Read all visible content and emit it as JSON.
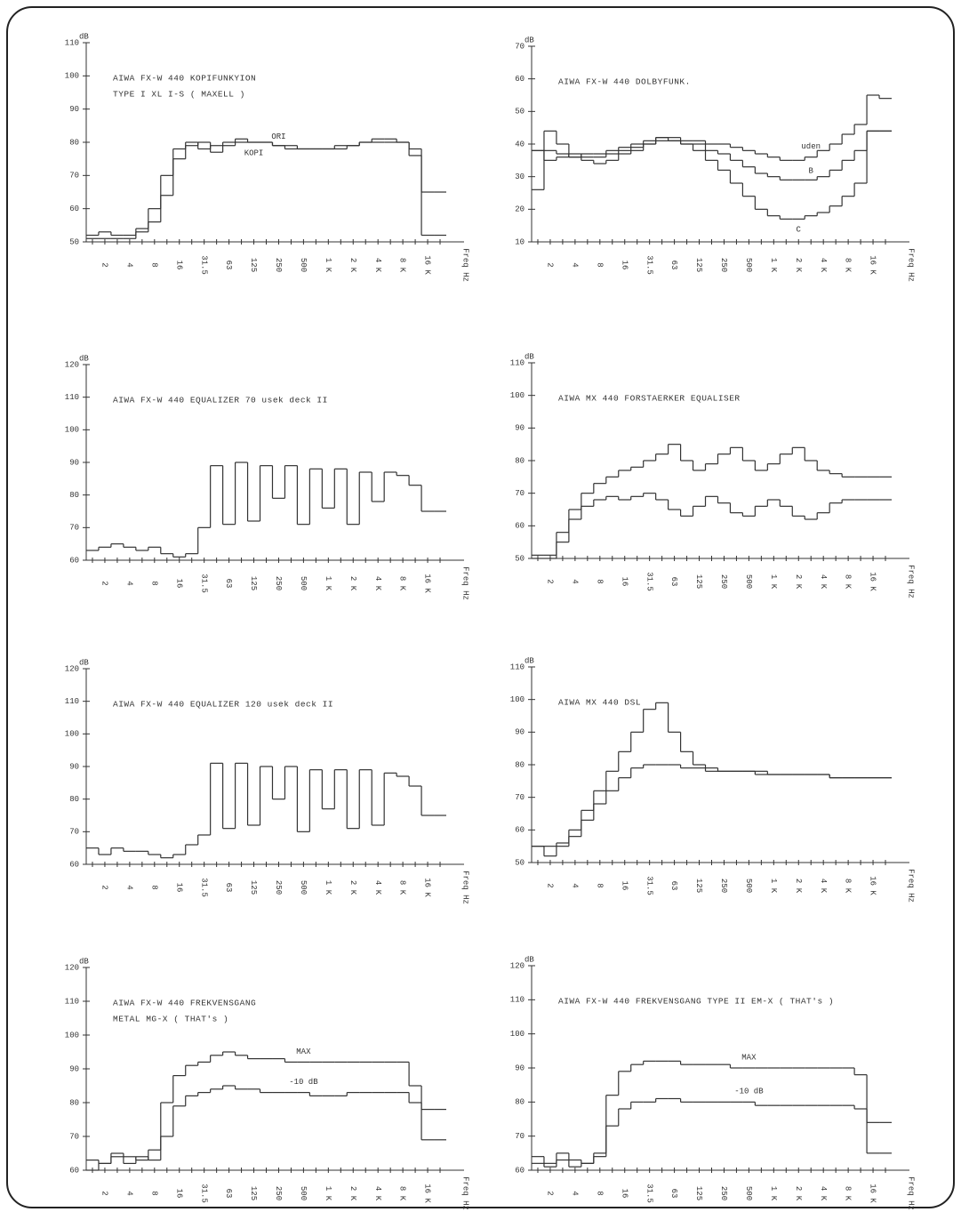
{
  "chart_data": [
    {
      "type": "step",
      "title": "AIWA FX-W 440 KOPIFUNKYION",
      "subtitle": "TYPE I XL I-S ( MAXELL )",
      "x_label": "Freq Hz",
      "y_unit": "dB",
      "color": "#333333",
      "categories": [
        null,
        "2",
        null,
        "4",
        null,
        "8",
        null,
        "16",
        null,
        "31.5",
        null,
        "63",
        null,
        "125",
        null,
        "250",
        null,
        "500",
        null,
        "1 K",
        null,
        "2 K",
        null,
        "4 K",
        null,
        "8 K",
        null,
        "16 K",
        null
      ],
      "ylim": [
        50,
        110
      ],
      "yticks": [
        50,
        60,
        70,
        80,
        90,
        100,
        110
      ],
      "series": [
        {
          "name": "ORI",
          "values": [
            52,
            53,
            52,
            52,
            54,
            60,
            70,
            78,
            80,
            78,
            79,
            80,
            81,
            80,
            80,
            79,
            79,
            78,
            78,
            78,
            79,
            79,
            80,
            81,
            81,
            80,
            78,
            65,
            65
          ]
        },
        {
          "name": "KOPI",
          "values": [
            51,
            51,
            51,
            51,
            53,
            56,
            64,
            75,
            79,
            80,
            77,
            79,
            80,
            80,
            80,
            79,
            78,
            78,
            78,
            78,
            78,
            79,
            80,
            80,
            80,
            80,
            76,
            52,
            52
          ]
        }
      ]
    },
    {
      "type": "step",
      "title": "AIWA FX-W 440 DOLBYFUNK.",
      "x_label": "Freq Hz",
      "y_unit": "dB",
      "color": "#333333",
      "categories": [
        null,
        "2",
        null,
        "4",
        null,
        "8",
        null,
        "16",
        null,
        "31.5",
        null,
        "63",
        null,
        "125",
        null,
        "250",
        null,
        "500",
        null,
        "1 K",
        null,
        "2 K",
        null,
        "4 K",
        null,
        "8 K",
        null,
        "16 K",
        null
      ],
      "ylim": [
        10,
        70
      ],
      "yticks": [
        10,
        20,
        30,
        40,
        50,
        60,
        70
      ],
      "series": [
        {
          "name": "uden",
          "values": [
            38,
            38,
            37,
            36,
            37,
            37,
            38,
            39,
            40,
            41,
            42,
            42,
            41,
            41,
            40,
            40,
            39,
            38,
            37,
            36,
            35,
            35,
            36,
            38,
            40,
            43,
            46,
            55,
            54
          ]
        },
        {
          "name": "B",
          "values": [
            38,
            35,
            36,
            37,
            36,
            36,
            37,
            38,
            39,
            40,
            41,
            41,
            40,
            40,
            38,
            37,
            35,
            33,
            31,
            30,
            29,
            29,
            29,
            30,
            32,
            35,
            38,
            44,
            44
          ]
        },
        {
          "name": "C",
          "values": [
            26,
            44,
            40,
            36,
            35,
            34,
            35,
            37,
            38,
            40,
            42,
            41,
            40,
            38,
            35,
            32,
            28,
            24,
            20,
            18,
            17,
            17,
            18,
            19,
            21,
            24,
            28,
            44,
            44
          ]
        }
      ]
    },
    {
      "type": "step",
      "title": "AIWA FX-W 440 EQUALIZER 70 usek deck II",
      "x_label": "Freq Hz",
      "y_unit": "dB",
      "color": "#333333",
      "categories": [
        null,
        "2",
        null,
        "4",
        null,
        "8",
        null,
        "16",
        null,
        "31.5",
        null,
        "63",
        null,
        "125",
        null,
        "250",
        null,
        "500",
        null,
        "1 K",
        null,
        "2 K",
        null,
        "4 K",
        null,
        "8 K",
        null,
        "16 K",
        null
      ],
      "ylim": [
        60,
        120
      ],
      "yticks": [
        60,
        70,
        80,
        90,
        100,
        110,
        120
      ],
      "series": [
        {
          "values": [
            63,
            64,
            65,
            64,
            63,
            64,
            62,
            61,
            62,
            70,
            89,
            71,
            90,
            72,
            89,
            79,
            89,
            71,
            88,
            76,
            88,
            71,
            87,
            78,
            87,
            86,
            83,
            75,
            75
          ]
        }
      ]
    },
    {
      "type": "step",
      "title": "AIWA MX 440 FORSTAERKER EQUALISER",
      "x_label": "Freq Hz",
      "y_unit": "dB",
      "color": "#333333",
      "categories": [
        null,
        "2",
        null,
        "4",
        null,
        "8",
        null,
        "16",
        null,
        "31.5",
        null,
        "63",
        null,
        "125",
        null,
        "250",
        null,
        "500",
        null,
        "1 K",
        null,
        "2 K",
        null,
        "4 K",
        null,
        "8 K",
        null,
        "16 K",
        null
      ],
      "ylim": [
        50,
        110
      ],
      "yticks": [
        50,
        60,
        70,
        80,
        90,
        100,
        110
      ],
      "series": [
        {
          "values": [
            51,
            51,
            58,
            65,
            70,
            73,
            75,
            77,
            78,
            80,
            82,
            85,
            80,
            77,
            79,
            82,
            84,
            80,
            77,
            79,
            82,
            84,
            80,
            77,
            76,
            75,
            75,
            75,
            75
          ]
        },
        {
          "values": [
            50,
            50,
            55,
            62,
            66,
            68,
            69,
            68,
            69,
            70,
            68,
            65,
            63,
            66,
            69,
            67,
            64,
            63,
            66,
            68,
            66,
            63,
            62,
            64,
            67,
            68,
            68,
            68,
            68
          ]
        }
      ]
    },
    {
      "type": "step",
      "title": "AIWA FX-W 440 EQUALIZER 120 usek deck II",
      "x_label": "Freq Hz",
      "y_unit": "dB",
      "color": "#333333",
      "categories": [
        null,
        "2",
        null,
        "4",
        null,
        "8",
        null,
        "16",
        null,
        "31.5",
        null,
        "63",
        null,
        "125",
        null,
        "250",
        null,
        "500",
        null,
        "1 K",
        null,
        "2 K",
        null,
        "4 K",
        null,
        "8 K",
        null,
        "16 K",
        null
      ],
      "ylim": [
        60,
        120
      ],
      "yticks": [
        60,
        70,
        80,
        90,
        100,
        110,
        120
      ],
      "series": [
        {
          "values": [
            65,
            63,
            65,
            64,
            64,
            63,
            62,
            63,
            66,
            69,
            91,
            71,
            91,
            72,
            90,
            80,
            90,
            70,
            89,
            77,
            89,
            71,
            89,
            72,
            88,
            87,
            84,
            75,
            75
          ]
        }
      ]
    },
    {
      "type": "step",
      "title": "AIWA MX 440 DSL",
      "x_label": "Freq Hz",
      "y_unit": "dB",
      "color": "#333333",
      "categories": [
        null,
        "2",
        null,
        "4",
        null,
        "8",
        null,
        "16",
        null,
        "31.5",
        null,
        "63",
        null,
        "125",
        null,
        "250",
        null,
        "500",
        null,
        "1 K",
        null,
        "2 K",
        null,
        "4 K",
        null,
        "8 K",
        null,
        "16 K",
        null
      ],
      "ylim": [
        50,
        110
      ],
      "yticks": [
        50,
        60,
        70,
        80,
        90,
        100,
        110
      ],
      "series": [
        {
          "values": [
            55,
            52,
            55,
            60,
            66,
            72,
            78,
            84,
            90,
            97,
            99,
            90,
            84,
            80,
            79,
            78,
            78,
            78,
            78,
            77,
            77,
            77,
            77,
            77,
            76,
            76,
            76,
            76,
            76
          ]
        },
        {
          "values": [
            55,
            55,
            56,
            58,
            63,
            68,
            72,
            76,
            79,
            80,
            80,
            80,
            79,
            79,
            78,
            78,
            78,
            78,
            77,
            77,
            77,
            77,
            77,
            77,
            76,
            76,
            76,
            76,
            76
          ]
        }
      ]
    },
    {
      "type": "step",
      "title": "AIWA FX-W 440 FREKVENSGANG",
      "subtitle": "METAL MG-X ( THAT's )",
      "x_label": "Freq Hz",
      "y_unit": "dB",
      "color": "#333333",
      "categories": [
        null,
        "2",
        null,
        "4",
        null,
        "8",
        null,
        "16",
        null,
        "31.5",
        null,
        "63",
        null,
        "125",
        null,
        "250",
        null,
        "500",
        null,
        "1 K",
        null,
        "2 K",
        null,
        "4 K",
        null,
        "8 K",
        null,
        "16 K",
        null
      ],
      "ylim": [
        60,
        120
      ],
      "yticks": [
        60,
        70,
        80,
        90,
        100,
        110,
        120
      ],
      "series": [
        {
          "name": "MAX",
          "values": [
            63,
            62,
            65,
            64,
            63,
            66,
            80,
            88,
            91,
            92,
            94,
            95,
            94,
            93,
            93,
            93,
            92,
            92,
            92,
            92,
            92,
            92,
            92,
            92,
            92,
            92,
            85,
            78,
            78
          ]
        },
        {
          "name": "-10 dB",
          "values": [
            60,
            62,
            64,
            62,
            64,
            63,
            70,
            79,
            82,
            83,
            84,
            85,
            84,
            84,
            83,
            83,
            83,
            83,
            82,
            82,
            82,
            83,
            83,
            83,
            83,
            83,
            80,
            69,
            69
          ]
        }
      ]
    },
    {
      "type": "step",
      "title": "AIWA FX-W 440 FREKVENSGANG TYPE II EM-X ( THAT's )",
      "x_label": "Freq Hz",
      "y_unit": "dB",
      "color": "#333333",
      "categories": [
        null,
        "2",
        null,
        "4",
        null,
        "8",
        null,
        "16",
        null,
        "31.5",
        null,
        "63",
        null,
        "125",
        null,
        "250",
        null,
        "500",
        null,
        "1 K",
        null,
        "2 K",
        null,
        "4 K",
        null,
        "8 K",
        null,
        "16 K",
        null
      ],
      "ylim": [
        60,
        120
      ],
      "yticks": [
        60,
        70,
        80,
        90,
        100,
        110,
        120
      ],
      "series": [
        {
          "name": "MAX",
          "values": [
            64,
            62,
            65,
            63,
            62,
            65,
            82,
            89,
            91,
            92,
            92,
            92,
            91,
            91,
            91,
            91,
            90,
            90,
            90,
            90,
            90,
            90,
            90,
            90,
            90,
            90,
            88,
            74,
            74
          ]
        },
        {
          "name": "-10 dB",
          "values": [
            62,
            61,
            63,
            61,
            62,
            64,
            73,
            78,
            80,
            80,
            81,
            81,
            80,
            80,
            80,
            80,
            80,
            80,
            79,
            79,
            79,
            79,
            79,
            79,
            79,
            79,
            78,
            65,
            65
          ]
        }
      ]
    }
  ]
}
